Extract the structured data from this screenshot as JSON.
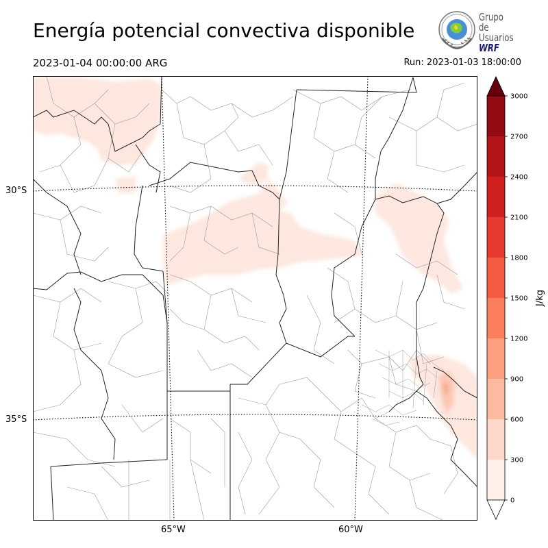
{
  "header": {
    "title": "Energía potencial convectiva disponible",
    "valid_time": "2023-01-04 00:00:00 ARG",
    "run_time": "Run: 2023-01-03 18:00:00"
  },
  "logo": {
    "line1": "Grupo de",
    "line2": "Usuarios",
    "line3": "WRF"
  },
  "map": {
    "lat_labels": [
      "30°S",
      "35°S"
    ],
    "lon_labels": [
      "65°W",
      "60°W"
    ]
  },
  "colorbar": {
    "unit": "J/kg",
    "ticks": [
      "0",
      "300",
      "600",
      "900",
      "1200",
      "1500",
      "1800",
      "2100",
      "2400",
      "2700",
      "3000"
    ],
    "colors": [
      "#fff0ea",
      "#fed9cb",
      "#fcbba1",
      "#fc9e80",
      "#fb7f5c",
      "#f45c42",
      "#e83a2f",
      "#d01f1f",
      "#b31417",
      "#930b12"
    ],
    "over_color": "#67000d",
    "under_color": "#ffffff"
  },
  "colors": {
    "light_field": "#fde7df",
    "mid_field": "#fcc8b4",
    "strong_field": "#f7a88c"
  }
}
